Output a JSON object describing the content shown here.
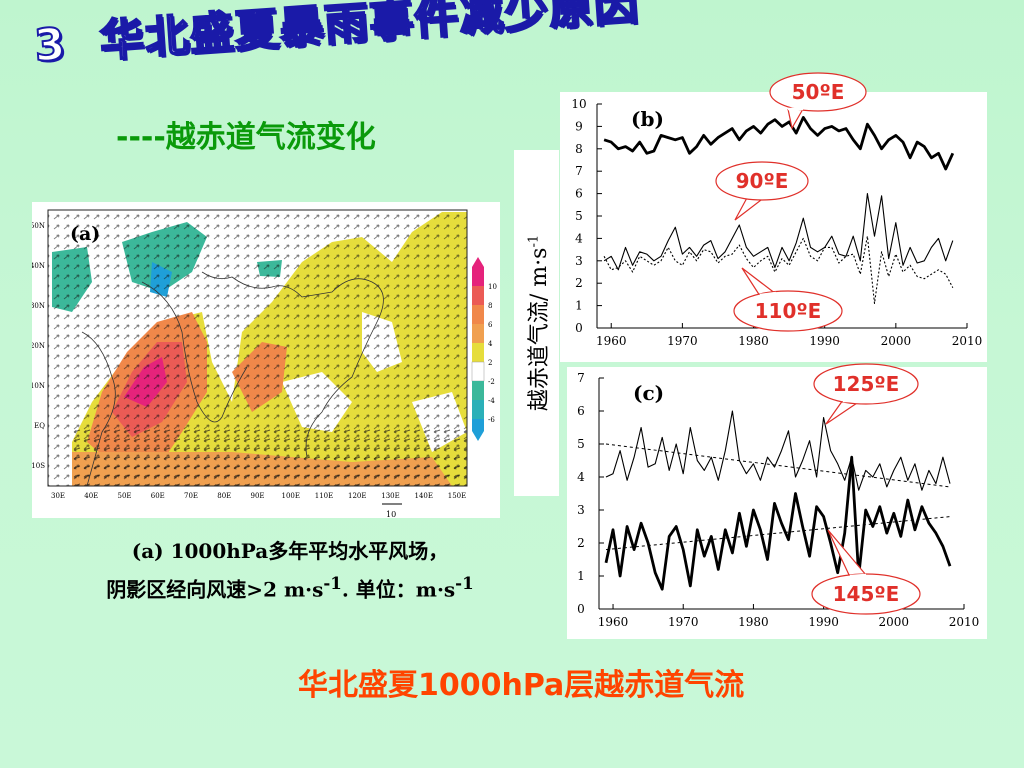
{
  "slide": {
    "section_number": "3",
    "title": "华北盛夏暴雨事件减少原因",
    "subtitle": "----越赤道气流变化",
    "caption_line1": "(a) 1000hPa多年平均水平风场，",
    "caption_line2_prefix": "阴影区经向风速>2 m·s",
    "caption_line2_mid": ". 单位：m·s",
    "caption_sup": "-1",
    "ylabel_prefix": "越赤道气流/ m·s",
    "ylabel_sup": "-1",
    "bottom_title": "华北盛夏1000hPa层越赤道气流"
  },
  "chart_data": [
    {
      "panel": "(a)",
      "type": "heatmap",
      "title": "",
      "x_tick_labels": [
        "30E",
        "40E",
        "50E",
        "60E",
        "70E",
        "80E",
        "90E",
        "100E",
        "110E",
        "120E",
        "130E",
        "140E",
        "150E"
      ],
      "y_tick_labels": [
        "50N",
        "40N",
        "30N",
        "20N",
        "10N",
        "EQ",
        "10S"
      ],
      "colorbar_ticks": [
        "10",
        "8",
        "6",
        "4",
        "2",
        "-2",
        "-4",
        "-6"
      ],
      "reference_vector_label": "10",
      "colors": {
        "strong_positive": "#e8237a",
        "positive": "#f08a4b",
        "weak_positive": "#e8dd3a",
        "weak_negative": "#3cb89a",
        "negative": "#1f9fd8"
      }
    },
    {
      "panel": "(b)",
      "type": "line",
      "x_tick_labels": [
        "1960",
        "1970",
        "1980",
        "1990",
        "2000",
        "2010"
      ],
      "y_tick_labels": [
        "0",
        "1",
        "2",
        "3",
        "4",
        "5",
        "6",
        "7",
        "8",
        "9",
        "10"
      ],
      "ylim": [
        0,
        10
      ],
      "xlim": [
        1958,
        2010
      ],
      "annotations": [
        "50ºE",
        "90ºE",
        "110ºE"
      ],
      "series": [
        {
          "name": "50ºE",
          "style": "bold",
          "x": [
            1959,
            1960,
            1961,
            1962,
            1963,
            1964,
            1965,
            1966,
            1967,
            1968,
            1969,
            1970,
            1971,
            1972,
            1973,
            1974,
            1975,
            1976,
            1977,
            1978,
            1979,
            1980,
            1981,
            1982,
            1983,
            1984,
            1985,
            1986,
            1987,
            1988,
            1989,
            1990,
            1991,
            1992,
            1993,
            1994,
            1995,
            1996,
            1997,
            1998,
            1999,
            2000,
            2001,
            2002,
            2003,
            2004,
            2005,
            2006,
            2007,
            2008
          ],
          "values": [
            8.4,
            8.3,
            8.0,
            8.1,
            7.9,
            8.3,
            7.8,
            7.9,
            8.6,
            8.5,
            8.4,
            8.5,
            7.8,
            8.1,
            8.6,
            8.2,
            8.5,
            8.7,
            8.9,
            8.4,
            8.8,
            9.0,
            8.7,
            9.1,
            9.3,
            9.0,
            9.2,
            8.7,
            9.4,
            8.9,
            8.6,
            8.9,
            9.0,
            8.8,
            8.9,
            8.4,
            8.0,
            9.1,
            8.6,
            8.0,
            8.4,
            8.6,
            8.3,
            7.6,
            8.3,
            8.1,
            7.6,
            7.8,
            7.1,
            7.8
          ]
        },
        {
          "name": "90ºE",
          "style": "thin",
          "x": [
            1959,
            1960,
            1961,
            1962,
            1963,
            1964,
            1965,
            1966,
            1967,
            1968,
            1969,
            1970,
            1971,
            1972,
            1973,
            1974,
            1975,
            1976,
            1977,
            1978,
            1979,
            1980,
            1981,
            1982,
            1983,
            1984,
            1985,
            1986,
            1987,
            1988,
            1989,
            1990,
            1991,
            1992,
            1993,
            1994,
            1995,
            1996,
            1997,
            1998,
            1999,
            2000,
            2001,
            2002,
            2003,
            2004,
            2005,
            2006,
            2007,
            2008
          ],
          "values": [
            3.0,
            3.2,
            2.6,
            3.6,
            2.8,
            3.4,
            3.3,
            3.0,
            3.2,
            3.9,
            4.5,
            3.3,
            3.6,
            3.2,
            3.7,
            3.9,
            3.1,
            3.4,
            4.0,
            4.6,
            3.6,
            3.2,
            3.4,
            3.6,
            2.7,
            3.6,
            3.0,
            3.8,
            4.9,
            3.6,
            3.4,
            3.6,
            4.1,
            3.3,
            3.2,
            4.1,
            3.0,
            6.0,
            4.1,
            5.9,
            3.1,
            4.7,
            2.8,
            3.6,
            2.9,
            3.0,
            3.6,
            4.0,
            3.0,
            3.9
          ]
        },
        {
          "name": "110ºE",
          "style": "dotted",
          "x": [
            1959,
            1960,
            1961,
            1962,
            1963,
            1964,
            1965,
            1966,
            1967,
            1968,
            1969,
            1970,
            1971,
            1972,
            1973,
            1974,
            1975,
            1976,
            1977,
            1978,
            1979,
            1980,
            1981,
            1982,
            1983,
            1984,
            1985,
            1986,
            1987,
            1988,
            1989,
            1990,
            1991,
            1992,
            1993,
            1994,
            1995,
            1996,
            1997,
            1998,
            1999,
            2000,
            2001,
            2002,
            2003,
            2004,
            2005,
            2006,
            2007,
            2008
          ],
          "values": [
            3.2,
            2.6,
            2.7,
            3.0,
            2.5,
            3.2,
            3.0,
            2.8,
            3.0,
            3.6,
            3.0,
            2.8,
            3.4,
            3.0,
            3.5,
            3.4,
            2.9,
            3.2,
            3.3,
            3.7,
            3.1,
            2.7,
            3.0,
            3.2,
            2.5,
            3.1,
            2.8,
            3.4,
            4.0,
            3.2,
            3.0,
            3.6,
            3.6,
            2.9,
            3.2,
            3.3,
            2.4,
            4.1,
            1.1,
            3.4,
            2.3,
            3.3,
            2.5,
            2.8,
            2.3,
            2.2,
            2.4,
            2.6,
            2.4,
            1.8
          ]
        }
      ]
    },
    {
      "panel": "(c)",
      "type": "line",
      "x_tick_labels": [
        "1960",
        "1970",
        "1980",
        "1990",
        "2000",
        "2010"
      ],
      "y_tick_labels": [
        "0",
        "1",
        "2",
        "3",
        "4",
        "5",
        "6",
        "7"
      ],
      "ylim": [
        0,
        7
      ],
      "xlim": [
        1958,
        2010
      ],
      "annotations": [
        "125ºE",
        "145ºE"
      ],
      "series": [
        {
          "name": "125ºE",
          "style": "thin",
          "x": [
            1959,
            1960,
            1961,
            1962,
            1963,
            1964,
            1965,
            1966,
            1967,
            1968,
            1969,
            1970,
            1971,
            1972,
            1973,
            1974,
            1975,
            1976,
            1977,
            1978,
            1979,
            1980,
            1981,
            1982,
            1983,
            1984,
            1985,
            1986,
            1987,
            1988,
            1989,
            1990,
            1991,
            1992,
            1993,
            1994,
            1995,
            1996,
            1997,
            1998,
            1999,
            2000,
            2001,
            2002,
            2003,
            2004,
            2005,
            2006,
            2007,
            2008
          ],
          "values": [
            4.0,
            4.1,
            4.8,
            3.9,
            4.6,
            5.5,
            4.3,
            4.4,
            5.2,
            4.2,
            5.0,
            4.1,
            5.5,
            4.5,
            4.2,
            4.6,
            3.9,
            4.8,
            6.0,
            4.5,
            4.1,
            4.4,
            3.9,
            4.6,
            4.3,
            4.8,
            5.4,
            4.0,
            4.5,
            5.1,
            4.0,
            5.8,
            4.8,
            4.4,
            3.9,
            4.6,
            3.6,
            4.2,
            4.0,
            4.4,
            3.7,
            4.2,
            4.6,
            3.9,
            4.4,
            3.6,
            4.2,
            3.8,
            4.6,
            3.8
          ]
        },
        {
          "name": "145ºE",
          "style": "bold",
          "x": [
            1959,
            1960,
            1961,
            1962,
            1963,
            1964,
            1965,
            1966,
            1967,
            1968,
            1969,
            1970,
            1971,
            1972,
            1973,
            1974,
            1975,
            1976,
            1977,
            1978,
            1979,
            1980,
            1981,
            1982,
            1983,
            1984,
            1985,
            1986,
            1987,
            1988,
            1989,
            1990,
            1991,
            1992,
            1993,
            1994,
            1995,
            1996,
            1997,
            1998,
            1999,
            2000,
            2001,
            2002,
            2003,
            2004,
            2005,
            2006,
            2007,
            2008
          ],
          "values": [
            1.4,
            2.4,
            1.0,
            2.5,
            1.8,
            2.6,
            2.0,
            1.1,
            0.6,
            2.2,
            2.5,
            1.8,
            0.7,
            2.4,
            1.6,
            2.2,
            1.2,
            2.4,
            1.7,
            2.9,
            1.9,
            3.0,
            2.4,
            1.5,
            3.2,
            2.6,
            2.1,
            3.5,
            2.5,
            1.6,
            3.1,
            2.8,
            2.0,
            1.1,
            2.3,
            4.6,
            1.0,
            3.0,
            2.5,
            3.1,
            2.3,
            2.9,
            2.2,
            3.3,
            2.4,
            3.1,
            2.6,
            2.3,
            1.9,
            1.3
          ]
        },
        {
          "name": "125ºE trend",
          "style": "dashed",
          "x": [
            1959,
            2008
          ],
          "values": [
            5.0,
            3.7
          ]
        },
        {
          "name": "145ºE trend",
          "style": "dashed",
          "x": [
            1959,
            2008
          ],
          "values": [
            1.8,
            2.8
          ]
        }
      ]
    }
  ]
}
